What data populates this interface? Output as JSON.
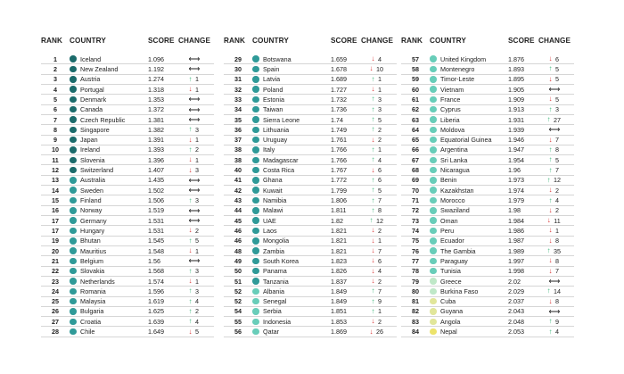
{
  "colors": {
    "dark_teal": "#1c6b6b",
    "mid_teal": "#2f9a98",
    "light_teal": "#68cdb9",
    "pale_green": "#bfe8c8",
    "yellow_green": "#e1e69a",
    "yellow": "#ece36b",
    "up": "#3fb77c",
    "down": "#d93636"
  },
  "headers": {
    "rank": "RANK",
    "country": "COUNTRY",
    "score": "SCORE",
    "change": "CHANGE"
  },
  "columns": [
    {
      "rows": [
        {
          "rank": "1",
          "country": "Iceland",
          "score": "1.096",
          "dir": "same",
          "change": "",
          "dot": "dark_teal"
        },
        {
          "rank": "2",
          "country": "New Zealand",
          "score": "1.192",
          "dir": "same",
          "change": "",
          "dot": "dark_teal"
        },
        {
          "rank": "3",
          "country": "Austria",
          "score": "1.274",
          "dir": "up",
          "change": "1",
          "dot": "dark_teal"
        },
        {
          "rank": "4",
          "country": "Portugal",
          "score": "1.318",
          "dir": "down",
          "change": "1",
          "dot": "dark_teal"
        },
        {
          "rank": "5",
          "country": "Denmark",
          "score": "1.353",
          "dir": "same",
          "change": "",
          "dot": "dark_teal"
        },
        {
          "rank": "6",
          "country": "Canada",
          "score": "1.372",
          "dir": "same",
          "change": "",
          "dot": "dark_teal"
        },
        {
          "rank": "7",
          "country": "Czech Republic",
          "score": "1.381",
          "dir": "same",
          "change": "",
          "dot": "dark_teal"
        },
        {
          "rank": "8",
          "country": "Singapore",
          "score": "1.382",
          "dir": "up",
          "change": "3",
          "dot": "dark_teal"
        },
        {
          "rank": "9",
          "country": "Japan",
          "score": "1.391",
          "dir": "down",
          "change": "1",
          "dot": "dark_teal"
        },
        {
          "rank": "10",
          "country": "Ireland",
          "score": "1.393",
          "dir": "up",
          "change": "2",
          "dot": "dark_teal"
        },
        {
          "rank": "11",
          "country": "Slovenia",
          "score": "1.396",
          "dir": "down",
          "change": "1",
          "dot": "dark_teal"
        },
        {
          "rank": "12",
          "country": "Switzerland",
          "score": "1.407",
          "dir": "down",
          "change": "3",
          "dot": "dark_teal"
        },
        {
          "rank": "13",
          "country": "Australia",
          "score": "1.435",
          "dir": "same",
          "change": "",
          "dot": "mid_teal"
        },
        {
          "rank": "14",
          "country": "Sweden",
          "score": "1.502",
          "dir": "same",
          "change": "",
          "dot": "mid_teal"
        },
        {
          "rank": "15",
          "country": "Finland",
          "score": "1.506",
          "dir": "up",
          "change": "3",
          "dot": "mid_teal"
        },
        {
          "rank": "16",
          "country": "Norway",
          "score": "1.519",
          "dir": "same",
          "change": "",
          "dot": "mid_teal"
        },
        {
          "rank": "17",
          "country": "Germany",
          "score": "1.531",
          "dir": "same",
          "change": "",
          "dot": "mid_teal"
        },
        {
          "rank": "17",
          "country": "Hungary",
          "score": "1.531",
          "dir": "down",
          "change": "2",
          "dot": "mid_teal"
        },
        {
          "rank": "19",
          "country": "Bhutan",
          "score": "1.545",
          "dir": "up",
          "change": "5",
          "dot": "mid_teal"
        },
        {
          "rank": "20",
          "country": "Mauritius",
          "score": "1.548",
          "dir": "down",
          "change": "1",
          "dot": "mid_teal"
        },
        {
          "rank": "21",
          "country": "Belgium",
          "score": "1.56",
          "dir": "same",
          "change": "",
          "dot": "mid_teal"
        },
        {
          "rank": "22",
          "country": "Slovakia",
          "score": "1.568",
          "dir": "up",
          "change": "3",
          "dot": "mid_teal"
        },
        {
          "rank": "23",
          "country": "Netherlands",
          "score": "1.574",
          "dir": "down",
          "change": "1",
          "dot": "mid_teal"
        },
        {
          "rank": "24",
          "country": "Romania",
          "score": "1.596",
          "dir": "up",
          "change": "3",
          "dot": "mid_teal"
        },
        {
          "rank": "25",
          "country": "Malaysia",
          "score": "1.619",
          "dir": "up",
          "change": "4",
          "dot": "mid_teal"
        },
        {
          "rank": "26",
          "country": "Bulgaria",
          "score": "1.625",
          "dir": "up",
          "change": "2",
          "dot": "mid_teal"
        },
        {
          "rank": "27",
          "country": "Croatia",
          "score": "1.639",
          "dir": "up",
          "change": "4",
          "dot": "mid_teal"
        },
        {
          "rank": "28",
          "country": "Chile",
          "score": "1.649",
          "dir": "down",
          "change": "5",
          "dot": "mid_teal"
        }
      ]
    },
    {
      "rows": [
        {
          "rank": "29",
          "country": "Botswana",
          "score": "1.659",
          "dir": "down",
          "change": "4",
          "dot": "mid_teal"
        },
        {
          "rank": "30",
          "country": "Spain",
          "score": "1.678",
          "dir": "down",
          "change": "10",
          "dot": "mid_teal"
        },
        {
          "rank": "31",
          "country": "Latvia",
          "score": "1.689",
          "dir": "up",
          "change": "1",
          "dot": "mid_teal"
        },
        {
          "rank": "32",
          "country": "Poland",
          "score": "1.727",
          "dir": "down",
          "change": "1",
          "dot": "mid_teal"
        },
        {
          "rank": "33",
          "country": "Estonia",
          "score": "1.732",
          "dir": "up",
          "change": "3",
          "dot": "mid_teal"
        },
        {
          "rank": "34",
          "country": "Taiwan",
          "score": "1.736",
          "dir": "up",
          "change": "3",
          "dot": "mid_teal"
        },
        {
          "rank": "35",
          "country": "Sierra Leone",
          "score": "1.74",
          "dir": "up",
          "change": "5",
          "dot": "mid_teal"
        },
        {
          "rank": "36",
          "country": "Lithuania",
          "score": "1.749",
          "dir": "up",
          "change": "2",
          "dot": "mid_teal"
        },
        {
          "rank": "37",
          "country": "Uruguay",
          "score": "1.761",
          "dir": "down",
          "change": "2",
          "dot": "mid_teal"
        },
        {
          "rank": "38",
          "country": "Italy",
          "score": "1.766",
          "dir": "up",
          "change": "1",
          "dot": "mid_teal"
        },
        {
          "rank": "38",
          "country": "Madagascar",
          "score": "1.766",
          "dir": "up",
          "change": "4",
          "dot": "mid_teal"
        },
        {
          "rank": "40",
          "country": "Costa Rica",
          "score": "1.767",
          "dir": "down",
          "change": "6",
          "dot": "mid_teal"
        },
        {
          "rank": "41",
          "country": "Ghana",
          "score": "1.772",
          "dir": "up",
          "change": "6",
          "dot": "mid_teal"
        },
        {
          "rank": "42",
          "country": "Kuwait",
          "score": "1.799",
          "dir": "up",
          "change": "5",
          "dot": "mid_teal"
        },
        {
          "rank": "43",
          "country": "Namibia",
          "score": "1.806",
          "dir": "up",
          "change": "7",
          "dot": "mid_teal"
        },
        {
          "rank": "44",
          "country": "Malawi",
          "score": "1.811",
          "dir": "up",
          "change": "8",
          "dot": "mid_teal"
        },
        {
          "rank": "45",
          "country": "UAE",
          "score": "1.82",
          "dir": "up",
          "change": "12",
          "dot": "mid_teal"
        },
        {
          "rank": "46",
          "country": "Laos",
          "score": "1.821",
          "dir": "down",
          "change": "2",
          "dot": "mid_teal"
        },
        {
          "rank": "46",
          "country": "Mongolia",
          "score": "1.821",
          "dir": "down",
          "change": "1",
          "dot": "mid_teal"
        },
        {
          "rank": "48",
          "country": "Zambia",
          "score": "1.821",
          "dir": "down",
          "change": "7",
          "dot": "mid_teal"
        },
        {
          "rank": "49",
          "country": "South Korea",
          "score": "1.823",
          "dir": "down",
          "change": "6",
          "dot": "mid_teal"
        },
        {
          "rank": "50",
          "country": "Panama",
          "score": "1.826",
          "dir": "down",
          "change": "4",
          "dot": "mid_teal"
        },
        {
          "rank": "51",
          "country": "Tanzania",
          "score": "1.837",
          "dir": "down",
          "change": "2",
          "dot": "mid_teal"
        },
        {
          "rank": "52",
          "country": "Albania",
          "score": "1.849",
          "dir": "up",
          "change": "7",
          "dot": "light_teal"
        },
        {
          "rank": "52",
          "country": "Senegal",
          "score": "1.849",
          "dir": "up",
          "change": "9",
          "dot": "light_teal"
        },
        {
          "rank": "54",
          "country": "Serbia",
          "score": "1.851",
          "dir": "up",
          "change": "1",
          "dot": "light_teal"
        },
        {
          "rank": "55",
          "country": "Indonesia",
          "score": "1.853",
          "dir": "down",
          "change": "2",
          "dot": "light_teal"
        },
        {
          "rank": "56",
          "country": "Qatar",
          "score": "1.869",
          "dir": "down",
          "change": "26",
          "dot": "light_teal"
        }
      ]
    },
    {
      "rows": [
        {
          "rank": "57",
          "country": "United Kingdom",
          "score": "1.876",
          "dir": "down",
          "change": "6",
          "dot": "light_teal"
        },
        {
          "rank": "58",
          "country": "Montenegro",
          "score": "1.893",
          "dir": "up",
          "change": "5",
          "dot": "light_teal"
        },
        {
          "rank": "59",
          "country": "Timor-Leste",
          "score": "1.895",
          "dir": "down",
          "change": "5",
          "dot": "light_teal"
        },
        {
          "rank": "60",
          "country": "Vietnam",
          "score": "1.905",
          "dir": "same",
          "change": "",
          "dot": "light_teal"
        },
        {
          "rank": "61",
          "country": "France",
          "score": "1.909",
          "dot": "light_teal",
          "dir": "down",
          "change": "5"
        },
        {
          "rank": "62",
          "country": "Cyprus",
          "score": "1.913",
          "dir": "up",
          "change": "3",
          "dot": "light_teal"
        },
        {
          "rank": "63",
          "country": "Liberia",
          "score": "1.931",
          "dir": "up",
          "change": "27",
          "dot": "light_teal"
        },
        {
          "rank": "64",
          "country": "Moldova",
          "score": "1.939",
          "dir": "same",
          "change": "",
          "dot": "light_teal"
        },
        {
          "rank": "65",
          "country": "Equatorial Guinea",
          "score": "1.946",
          "dir": "down",
          "change": "7",
          "dot": "light_teal"
        },
        {
          "rank": "66",
          "country": "Argentina",
          "score": "1.947",
          "dir": "up",
          "change": "8",
          "dot": "light_teal"
        },
        {
          "rank": "67",
          "country": "Sri Lanka",
          "score": "1.954",
          "dot": "light_teal",
          "dir": "up",
          "change": "5"
        },
        {
          "rank": "68",
          "country": "Nicaragua",
          "score": "1.96",
          "dir": "up",
          "change": "7",
          "dot": "light_teal"
        },
        {
          "rank": "69",
          "country": "Benin",
          "score": "1.973",
          "dir": "up",
          "change": "12",
          "dot": "light_teal"
        },
        {
          "rank": "70",
          "country": "Kazakhstan",
          "score": "1.974",
          "dir": "down",
          "change": "2",
          "dot": "light_teal"
        },
        {
          "rank": "71",
          "country": "Morocco",
          "score": "1.979",
          "dir": "up",
          "change": "4",
          "dot": "light_teal"
        },
        {
          "rank": "72",
          "country": "Swaziland",
          "score": "1.98",
          "dir": "down",
          "change": "2",
          "dot": "light_teal"
        },
        {
          "rank": "73",
          "country": "Oman",
          "score": "1.984",
          "dir": "down",
          "change": "11",
          "dot": "light_teal"
        },
        {
          "rank": "74",
          "country": "Peru",
          "score": "1.986",
          "dir": "down",
          "change": "1",
          "dot": "light_teal"
        },
        {
          "rank": "75",
          "country": "Ecuador",
          "score": "1.987",
          "dir": "down",
          "change": "8",
          "dot": "light_teal"
        },
        {
          "rank": "76",
          "country": "The Gambia",
          "score": "1.989",
          "dir": "up",
          "change": "35",
          "dot": "light_teal"
        },
        {
          "rank": "77",
          "country": "Paraguay",
          "score": "1.997",
          "dir": "down",
          "change": "8",
          "dot": "light_teal"
        },
        {
          "rank": "78",
          "country": "Tunisia",
          "score": "1.998",
          "dir": "down",
          "change": "7",
          "dot": "light_teal"
        },
        {
          "rank": "79",
          "country": "Greece",
          "score": "2.02",
          "dir": "same",
          "change": "",
          "dot": "pale_green"
        },
        {
          "rank": "80",
          "country": "Burkina Faso",
          "score": "2.029",
          "dir": "up",
          "change": "14",
          "dot": "pale_green"
        },
        {
          "rank": "81",
          "country": "Cuba",
          "score": "2.037",
          "dir": "down",
          "change": "8",
          "dot": "yellow_green"
        },
        {
          "rank": "82",
          "country": "Guyana",
          "score": "2.043",
          "dir": "same",
          "change": "",
          "dot": "yellow_green"
        },
        {
          "rank": "83",
          "country": "Angola",
          "score": "2.048",
          "dir": "up",
          "change": "9",
          "dot": "yellow_green"
        },
        {
          "rank": "84",
          "country": "Nepal",
          "score": "2.053",
          "dir": "up",
          "change": "4",
          "dot": "yellow"
        }
      ]
    }
  ]
}
